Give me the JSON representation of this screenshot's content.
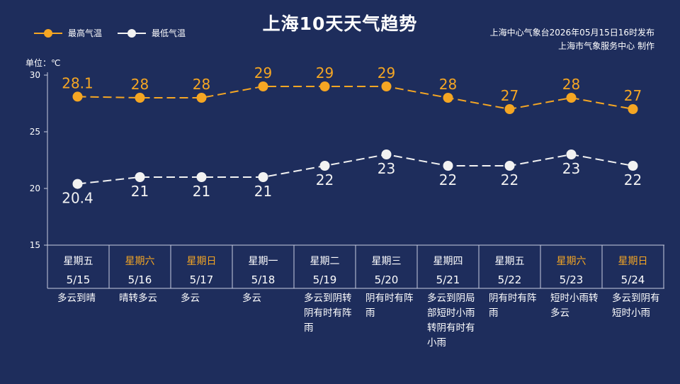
{
  "title": "上海10天天气趋势",
  "publisher_line1": "上海中心气象台2026年05月15日16时发布",
  "publisher_line2": "上海市气象服务中心  制作",
  "unit_label": "单位：℃",
  "colors": {
    "high": "#f5a623",
    "low": "#f2f2f2",
    "background": "#1e2d5c",
    "weekend": "#f5a623"
  },
  "chart_data": {
    "type": "line",
    "title": "上海10天天气趋势",
    "ylabel": "单位：℃",
    "ylim": [
      15,
      30
    ],
    "yticks": [
      15,
      20,
      25,
      30
    ],
    "categories": [
      "5/15",
      "5/16",
      "5/17",
      "5/18",
      "5/19",
      "5/20",
      "5/21",
      "5/22",
      "5/23",
      "5/24"
    ],
    "series": [
      {
        "name": "最高气温",
        "color": "#f5a623",
        "values": [
          28.1,
          28,
          28,
          29,
          29,
          29,
          28,
          27,
          28,
          27
        ],
        "labels": [
          "28.1",
          "28",
          "28",
          "29",
          "29",
          "29",
          "28",
          "27",
          "28",
          "27"
        ]
      },
      {
        "name": "最低气温",
        "color": "#f2f2f2",
        "values": [
          20.4,
          21,
          21,
          21,
          22,
          23,
          22,
          22,
          23,
          22
        ],
        "labels": [
          "20.4",
          "21",
          "21",
          "21",
          "22",
          "23",
          "22",
          "22",
          "23",
          "22"
        ]
      }
    ],
    "legend": "top-left",
    "grid": false
  },
  "days": [
    {
      "weekday": "星期五",
      "date": "5/15",
      "weather": "多云到晴",
      "weekend": false
    },
    {
      "weekday": "星期六",
      "date": "5/16",
      "weather": "晴转多云",
      "weekend": true
    },
    {
      "weekday": "星期日",
      "date": "5/17",
      "weather": "多云",
      "weekend": true
    },
    {
      "weekday": "星期一",
      "date": "5/18",
      "weather": "多云",
      "weekend": false
    },
    {
      "weekday": "星期二",
      "date": "5/19",
      "weather": "多云到阴转阴有时有阵雨",
      "weekend": false
    },
    {
      "weekday": "星期三",
      "date": "5/20",
      "weather": "阴有时有阵雨",
      "weekend": false
    },
    {
      "weekday": "星期四",
      "date": "5/21",
      "weather": "多云到阴局部短时小雨转阴有时有小雨",
      "weekend": false
    },
    {
      "weekday": "星期五",
      "date": "5/22",
      "weather": "阴有时有阵雨",
      "weekend": false
    },
    {
      "weekday": "星期六",
      "date": "5/23",
      "weather": "短时小雨转多云",
      "weekend": true
    },
    {
      "weekday": "星期日",
      "date": "5/24",
      "weather": "多云到阴有短时小雨",
      "weekend": true
    }
  ]
}
